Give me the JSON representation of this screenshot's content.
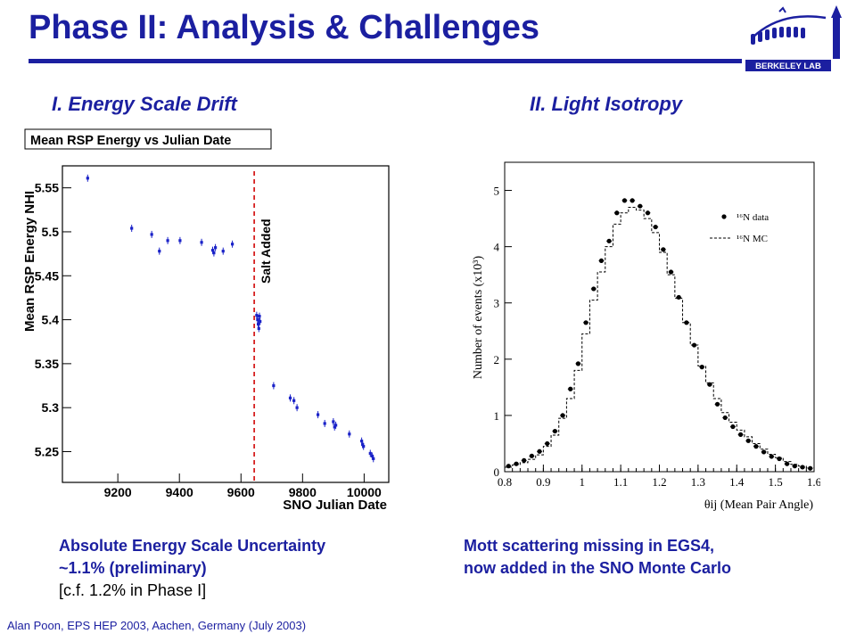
{
  "slide": {
    "title": "Phase II: Analysis & Challenges",
    "logo_text": "BERKELEY LAB",
    "left_heading": "I. Energy Scale Drift",
    "right_heading": "II. Light Isotropy",
    "left_note_lines": [
      "Absolute Energy Scale Uncertainty",
      "~1.1% (preliminary)",
      "[c.f. 1.2%  in Phase I]"
    ],
    "right_note_lines": [
      "Mott scattering missing in EGS4,",
      "now added in the SNO Monte Carlo"
    ],
    "footer": "Alan Poon, EPS HEP 2003, Aachen, Germany (July 2003)"
  },
  "colors": {
    "title_blue": "#1b1fa0",
    "marker_blue": "#1a22c8",
    "salt_line": "#d62020"
  },
  "chart_data": [
    {
      "type": "scatter",
      "title": "Mean RSP Energy vs Julian Date",
      "xlabel": "SNO Julian Date",
      "ylabel": "Mean RSP Energy NHI",
      "xlim": [
        9020,
        10080
      ],
      "ylim": [
        5.215,
        5.575
      ],
      "xticks": [
        9200,
        9400,
        9600,
        9800,
        10000
      ],
      "yticks": [
        5.25,
        5.3,
        5.35,
        5.4,
        5.45,
        5.5,
        5.55
      ],
      "annotation": {
        "text": "Salt Added",
        "x": 9643
      },
      "grid": false,
      "series": [
        {
          "x": [
            9102,
            9245,
            9310,
            9335,
            9362,
            9402,
            9472,
            9508,
            9512,
            9517,
            9542,
            9572,
            9651,
            9654,
            9656,
            9658,
            9660,
            9662,
            9706,
            9760,
            9772,
            9782,
            9850,
            9872,
            9900,
            9904,
            9908,
            9952,
            9992,
            9995,
            9998,
            10020,
            10026,
            10030
          ],
          "y": [
            5.561,
            5.504,
            5.497,
            5.478,
            5.49,
            5.49,
            5.488,
            5.479,
            5.476,
            5.482,
            5.478,
            5.486,
            5.405,
            5.4,
            5.395,
            5.39,
            5.404,
            5.398,
            5.325,
            5.311,
            5.308,
            5.3,
            5.292,
            5.282,
            5.284,
            5.278,
            5.28,
            5.27,
            5.262,
            5.258,
            5.256,
            5.248,
            5.245,
            5.242
          ]
        }
      ]
    },
    {
      "type": "scatter",
      "xlabel": "θij (Mean Pair Angle)",
      "ylabel": "Number of events (x10³)",
      "xlim": [
        0.8,
        1.6
      ],
      "ylim": [
        0,
        5.5
      ],
      "xticks": [
        0.8,
        0.9,
        1,
        1.1,
        1.2,
        1.3,
        1.4,
        1.5,
        1.6
      ],
      "yticks": [
        0,
        1,
        2,
        3,
        4,
        5
      ],
      "legend_position": "top-right",
      "series": [
        {
          "name": "¹⁶N data",
          "style": "points",
          "x": [
            0.81,
            0.83,
            0.85,
            0.87,
            0.89,
            0.91,
            0.93,
            0.95,
            0.97,
            0.99,
            1.01,
            1.03,
            1.05,
            1.07,
            1.09,
            1.11,
            1.13,
            1.15,
            1.17,
            1.19,
            1.21,
            1.23,
            1.25,
            1.27,
            1.29,
            1.31,
            1.33,
            1.35,
            1.37,
            1.39,
            1.41,
            1.43,
            1.45,
            1.47,
            1.49,
            1.51,
            1.53,
            1.55,
            1.57,
            1.59
          ],
          "y": [
            0.1,
            0.14,
            0.2,
            0.28,
            0.36,
            0.5,
            0.72,
            1,
            1.47,
            1.92,
            2.65,
            3.25,
            3.75,
            4.1,
            4.6,
            4.82,
            4.82,
            4.72,
            4.6,
            4.35,
            3.95,
            3.55,
            3.1,
            2.65,
            2.25,
            1.86,
            1.55,
            1.2,
            0.96,
            0.8,
            0.66,
            0.55,
            0.45,
            0.35,
            0.27,
            0.23,
            0.14,
            0.1,
            0.08,
            0.06
          ]
        },
        {
          "name": "¹⁶N MC",
          "style": "dashed-step",
          "x": [
            0.8,
            0.82,
            0.84,
            0.86,
            0.88,
            0.9,
            0.92,
            0.94,
            0.96,
            0.98,
            1,
            1.02,
            1.04,
            1.06,
            1.08,
            1.1,
            1.12,
            1.14,
            1.16,
            1.18,
            1.2,
            1.22,
            1.24,
            1.26,
            1.28,
            1.3,
            1.32,
            1.34,
            1.36,
            1.38,
            1.4,
            1.42,
            1.44,
            1.46,
            1.48,
            1.5,
            1.52,
            1.54,
            1.56,
            1.58
          ],
          "y": [
            0.08,
            0.12,
            0.16,
            0.22,
            0.3,
            0.45,
            0.65,
            0.95,
            1.3,
            1.8,
            2.45,
            3.05,
            3.55,
            4,
            4.4,
            4.6,
            4.7,
            4.65,
            4.5,
            4.25,
            3.9,
            3.5,
            3.08,
            2.65,
            2.25,
            1.88,
            1.58,
            1.3,
            1.05,
            0.88,
            0.74,
            0.62,
            0.5,
            0.4,
            0.31,
            0.25,
            0.18,
            0.13,
            0.1,
            0.07
          ]
        }
      ]
    }
  ]
}
